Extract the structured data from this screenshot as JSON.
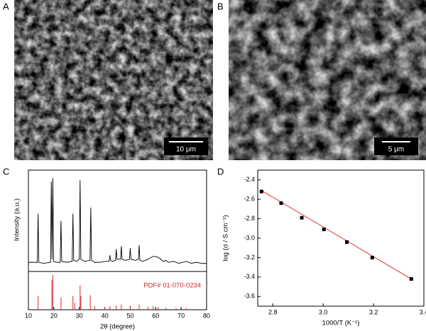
{
  "figure": {
    "panels": [
      {
        "label": "A",
        "scale_bar": "10 μm"
      },
      {
        "label": "B",
        "scale_bar": "5 μm"
      },
      {
        "label": "C"
      },
      {
        "label": "D"
      }
    ]
  },
  "chart_data": [
    {
      "type": "line",
      "ylabel": "Intensity (a.u.)",
      "xlim": [
        10,
        80
      ],
      "ylim": [
        0,
        100
      ],
      "x": [
        10,
        12,
        13.5,
        13.8,
        14.1,
        16,
        18.7,
        19.0,
        19.3,
        19.6,
        19.9,
        21,
        22.5,
        22.8,
        23.1,
        25,
        27.2,
        27.5,
        27.8,
        29,
        30.0,
        30.3,
        30.6,
        32,
        34.2,
        34.5,
        34.8,
        36,
        38,
        40,
        41.7,
        42,
        42.3,
        43,
        44.2,
        44.5,
        44.8,
        46.2,
        46.5,
        46.8,
        48,
        49.7,
        50,
        50.3,
        52,
        53.2,
        53.5,
        53.8,
        55,
        57,
        59,
        61,
        63,
        64,
        65,
        67,
        69,
        72,
        74,
        76,
        78,
        80
      ],
      "series": [
        {
          "color": "#000000",
          "values": [
            9,
            9,
            9,
            57,
            9,
            8,
            9,
            89,
            12,
            92,
            10,
            9,
            9,
            50,
            10,
            9,
            10,
            57,
            11,
            10,
            12,
            90,
            12,
            10,
            11,
            63,
            11,
            9,
            9,
            10,
            10,
            16,
            11,
            10,
            11,
            22,
            12,
            12,
            25,
            12,
            11,
            12,
            23,
            12,
            11,
            12,
            26,
            11,
            10,
            12,
            15,
            14,
            10,
            11,
            9,
            10,
            8,
            10,
            8,
            9,
            8,
            8
          ]
        }
      ]
    },
    {
      "type": "stem",
      "annotation": "PDF# 01-070-0234",
      "xlabel": "2θ (degree)",
      "xlim": [
        10,
        80
      ],
      "ylim": [
        0,
        110
      ],
      "xticks": [
        10,
        20,
        30,
        40,
        50,
        60,
        70,
        80
      ],
      "x": [
        13.8,
        19.2,
        19.6,
        22.8,
        27.5,
        28.2,
        30.3,
        30.6,
        34.3,
        36,
        40,
        42,
        44.5,
        46.5,
        50,
        53.5,
        57,
        59,
        61,
        64,
        68,
        72
      ],
      "series": [
        {
          "color": "#d9282f",
          "values": [
            40,
            85,
            100,
            35,
            40,
            20,
            70,
            40,
            42,
            10,
            8,
            10,
            12,
            15,
            12,
            15,
            8,
            10,
            8,
            6,
            5,
            5
          ]
        }
      ]
    },
    {
      "type": "scatter",
      "xlabel": "1000/T (K⁻¹)",
      "ylabel": "log (σ / S cm⁻¹)",
      "xlim": [
        2.74,
        3.4
      ],
      "ylim": [
        -3.7,
        -2.3
      ],
      "xticks": [
        2.8,
        {
          "value": 3,
          "label": "3.0"
        },
        3.2,
        3.4
      ],
      "yticks": [
        -2.4,
        -2.6,
        -2.8,
        {
          "value": -3,
          "label": "-3.0"
        },
        -3.2,
        -3.4,
        -3.6
      ],
      "x": [
        2.755,
        2.833,
        2.915,
        3.003,
        3.094,
        3.195,
        3.35
      ],
      "series": [
        {
          "color": "#000000",
          "marker": "square",
          "values": [
            -2.52,
            -2.64,
            -2.79,
            -2.91,
            -3.04,
            -3.2,
            -3.42
          ]
        },
        {
          "color": "#e03030",
          "marker": "none",
          "x": [
            2.755,
            3.35
          ],
          "values": [
            -2.51,
            -3.42
          ]
        }
      ]
    }
  ]
}
